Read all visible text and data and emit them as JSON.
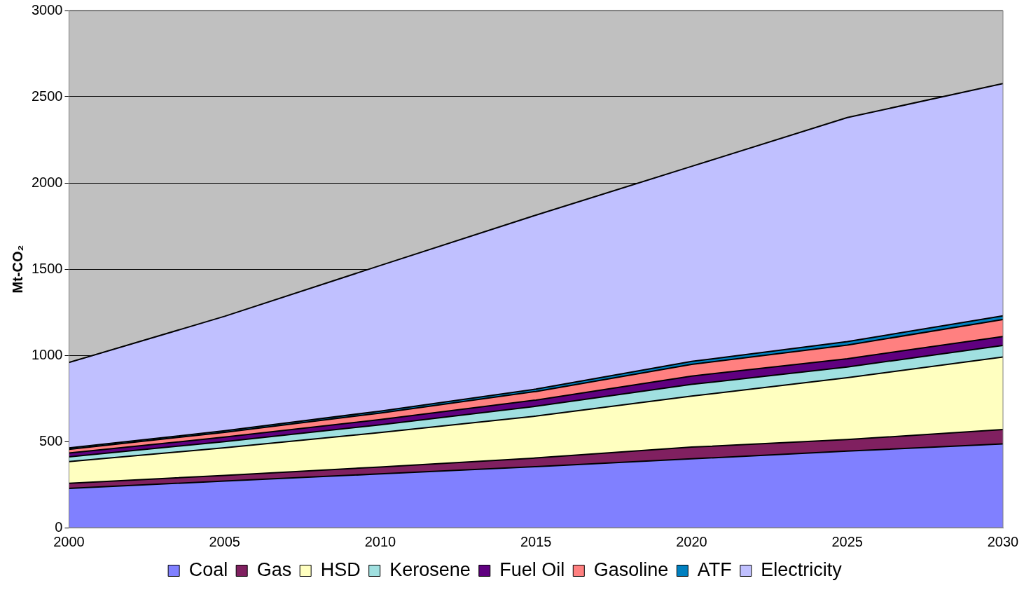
{
  "chart_data": {
    "type": "area",
    "stacked": true,
    "ylabel": "Mt-CO₂",
    "x": [
      2000,
      2005,
      2010,
      2015,
      2020,
      2025,
      2030
    ],
    "xlim": [
      2000,
      2030
    ],
    "xticks": [
      2000,
      2005,
      2010,
      2015,
      2020,
      2025,
      2030
    ],
    "ylim": [
      0,
      3000
    ],
    "yticks": [
      0,
      500,
      1000,
      1500,
      2000,
      2500,
      3000
    ],
    "grid": "y",
    "legend": "bottom",
    "series": [
      {
        "name": "Coal",
        "color": "#8080ff",
        "values": [
          228,
          270,
          312,
          354,
          399,
          444,
          486
        ]
      },
      {
        "name": "Gas",
        "color": "#802060",
        "values": [
          29,
          33,
          40,
          50,
          68,
          67,
          83
        ]
      },
      {
        "name": "HSD",
        "color": "#ffffc0",
        "values": [
          126,
          160,
          200,
          243,
          296,
          359,
          421
        ]
      },
      {
        "name": "Kerosene",
        "color": "#a0e0e0",
        "values": [
          28,
          36,
          45,
          57,
          68,
          62,
          67
        ]
      },
      {
        "name": "Fuel Oil",
        "color": "#600080",
        "values": [
          22,
          26,
          30,
          36,
          48,
          48,
          52
        ]
      },
      {
        "name": "Gasoline",
        "color": "#ff8080",
        "values": [
          21,
          28,
          38,
          50,
          68,
          79,
          98
        ]
      },
      {
        "name": "ATF",
        "color": "#0080c0",
        "values": [
          8,
          9,
          11,
          14,
          17,
          20,
          22
        ]
      },
      {
        "name": "Electricity",
        "color": "#c0c0ff",
        "values": [
          496,
          664,
          845,
          1009,
          1132,
          1300,
          1347
        ]
      }
    ]
  }
}
